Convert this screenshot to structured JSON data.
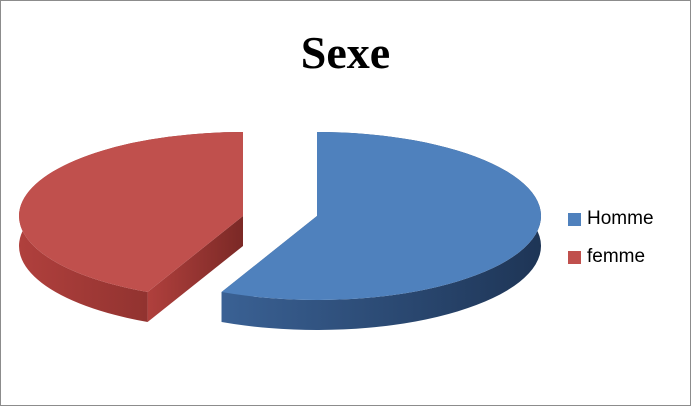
{
  "chart_data": {
    "type": "pie",
    "title": "Sexe",
    "three_d": true,
    "exploded": true,
    "legend_position": "right",
    "categories": [
      "Homme",
      "femme"
    ],
    "values": [
      57,
      43
    ],
    "colors": [
      "#4f81bd",
      "#c0504d"
    ]
  }
}
